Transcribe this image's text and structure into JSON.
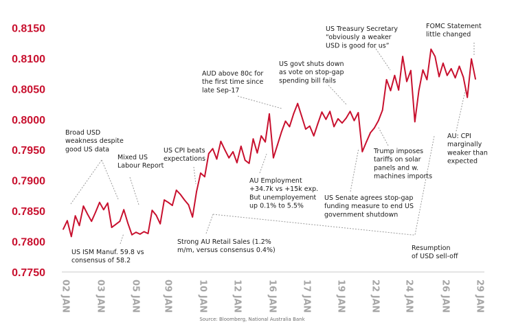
{
  "chart_data": {
    "type": "line",
    "title": "",
    "xlabel": "",
    "ylabel": "",
    "ylim": [
      0.775,
      0.8155
    ],
    "y_ticks": [
      "0.8150",
      "0.8100",
      "0.8050",
      "0.8000",
      "0.7950",
      "0.7900",
      "0.7850",
      "0.7800",
      "0.7750"
    ],
    "x_ticks": [
      "02 JAN",
      "03 JAN",
      "05 JAN",
      "09 JAN",
      "10 JAN",
      "12 JAN",
      "16 JAN",
      "17 JAN",
      "19 JAN",
      "22 JAN",
      "24 JAN",
      "26 JAN",
      "29 JAN"
    ],
    "grid": false,
    "line_color": "#c8102e",
    "series": [
      {
        "values": [
          0.782,
          0.7834,
          0.7808,
          0.7842,
          0.7826,
          0.7858,
          0.7845,
          0.7833,
          0.7848,
          0.7864,
          0.7852,
          0.7863,
          0.7823,
          0.7828,
          0.7833,
          0.7852,
          0.783,
          0.7811,
          0.7815,
          0.7812,
          0.7816,
          0.7813,
          0.7851,
          0.7843,
          0.7829,
          0.7868,
          0.7864,
          0.7859,
          0.7884,
          0.7877,
          0.7868,
          0.786,
          0.784,
          0.7882,
          0.7912,
          0.7906,
          0.7944,
          0.7952,
          0.7935,
          0.7964,
          0.795,
          0.7937,
          0.7947,
          0.7929,
          0.7956,
          0.7933,
          0.7928,
          0.7968,
          0.7945,
          0.7973,
          0.7963,
          0.8009,
          0.7937,
          0.7958,
          0.7979,
          0.7997,
          0.7988,
          0.8009,
          0.8026,
          0.8005,
          0.7984,
          0.7989,
          0.7973,
          0.7993,
          0.8012,
          0.8,
          0.8013,
          0.7988,
          0.8001,
          0.7994,
          0.8002,
          0.8013,
          0.7998,
          0.8011,
          0.7947,
          0.7963,
          0.7978,
          0.7986,
          0.7998,
          0.8015,
          0.8065,
          0.8047,
          0.8072,
          0.8048,
          0.8103,
          0.8062,
          0.808,
          0.7996,
          0.8047,
          0.8081,
          0.8065,
          0.8115,
          0.8103,
          0.807,
          0.8092,
          0.8072,
          0.8083,
          0.8068,
          0.8087,
          0.8069,
          0.8036,
          0.8099,
          0.8066
        ]
      }
    ],
    "annotations": [
      {
        "name": "ism",
        "lines": [
          "US ISM Manuf. 59.8 vs",
          "consensus of 58.2"
        ]
      },
      {
        "name": "broad-usd",
        "lines": [
          "Broad USD",
          "weakness despite",
          "good US data"
        ]
      },
      {
        "name": "mixed-us",
        "lines": [
          "Mixed US",
          "Labour Report"
        ]
      },
      {
        "name": "us-cpi",
        "lines": [
          "US CPI beats",
          "expectations"
        ]
      },
      {
        "name": "strong-au-retail",
        "lines": [
          "Strong AU Retail Sales (1.2%",
          "m/m, versus consensus 0.4%)"
        ]
      },
      {
        "name": "au-above-80c",
        "lines": [
          "AUD above 80c for",
          "the first time since",
          "late Sep-17"
        ]
      },
      {
        "name": "au-employment",
        "lines": [
          "AU Employment",
          "+34.7k vs +15k exp.",
          "But unemployement",
          "up 0.1% to 5.5%"
        ]
      },
      {
        "name": "us-govt-shutdown",
        "lines": [
          "US govt shuts down",
          "as vote on stop-gap",
          "spending bill fails"
        ]
      },
      {
        "name": "us-treasury",
        "lines": [
          "US Treasury Secretary",
          "“obviously a weaker",
          "USD is good for us”"
        ]
      },
      {
        "name": "fomc",
        "lines": [
          "FOMC Statement",
          "little changed"
        ]
      },
      {
        "name": "trump-tariffs",
        "lines": [
          "Trump imposes",
          "tariffs on solar",
          "panels and w.",
          "machines imports"
        ]
      },
      {
        "name": "us-senate",
        "lines": [
          "US Senate agrees stop-gap",
          "funding measure to end US",
          "government shutdown"
        ]
      },
      {
        "name": "resumption",
        "lines": [
          "Resumption",
          "of USD sell-off"
        ]
      },
      {
        "name": "au-cpi",
        "lines": [
          "AU: CPI",
          "marginally",
          "weaker than",
          "expected"
        ]
      }
    ],
    "source": "Source: Bloomberg, National Australia Bank"
  }
}
